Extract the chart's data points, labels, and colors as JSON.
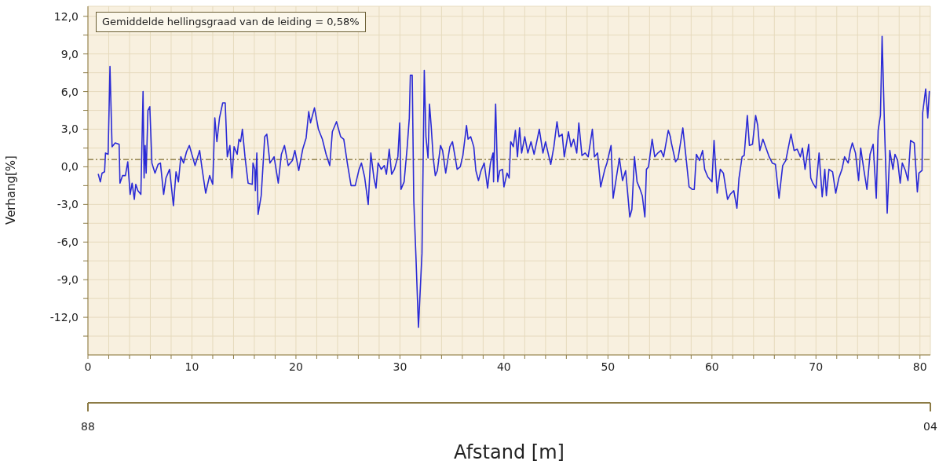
{
  "chart_data": {
    "type": "line",
    "xlabel": "Afstand [m]",
    "ylabel": "Verhang[%]",
    "annotations": [
      "Gemiddelde hellingsgraad van de leiding = 0,58%",
      "88",
      "04"
    ],
    "color": "#2a2ad6",
    "marker": "none",
    "grid": true,
    "xlim": [
      0,
      81
    ],
    "ylim": [
      -15,
      12.8
    ],
    "xticks": [
      0,
      {
        "value": 2,
        "label": null
      },
      {
        "value": 4,
        "label": null
      },
      {
        "value": 6,
        "label": null
      },
      {
        "value": 8,
        "label": null
      },
      10,
      {
        "value": 12,
        "label": null
      },
      {
        "value": 14,
        "label": null
      },
      {
        "value": 16,
        "label": null
      },
      {
        "value": 18,
        "label": null
      },
      20,
      {
        "value": 22,
        "label": null
      },
      {
        "value": 24,
        "label": null
      },
      {
        "value": 26,
        "label": null
      },
      {
        "value": 28,
        "label": null
      },
      30,
      {
        "value": 32,
        "label": null
      },
      {
        "value": 34,
        "label": null
      },
      {
        "value": 36,
        "label": null
      },
      {
        "value": 38,
        "label": null
      },
      40,
      {
        "value": 42,
        "label": null
      },
      {
        "value": 44,
        "label": null
      },
      {
        "value": 46,
        "label": null
      },
      {
        "value": 48,
        "label": null
      },
      50,
      {
        "value": 52,
        "label": null
      },
      {
        "value": 54,
        "label": null
      },
      {
        "value": 56,
        "label": null
      },
      {
        "value": 58,
        "label": null
      },
      60,
      {
        "value": 62,
        "label": null
      },
      {
        "value": 64,
        "label": null
      },
      {
        "value": 66,
        "label": null
      },
      {
        "value": 68,
        "label": null
      },
      70,
      {
        "value": 72,
        "label": null
      },
      {
        "value": 74,
        "label": null
      },
      {
        "value": 76,
        "label": null
      },
      {
        "value": 78,
        "label": null
      },
      80
    ],
    "yticks": [
      {
        "value": -13.5,
        "label": null
      },
      {
        "value": -12,
        "label": "-12,0"
      },
      {
        "value": -10.5,
        "label": null
      },
      {
        "value": -9,
        "label": "-9,0"
      },
      {
        "value": -7.5,
        "label": null
      },
      {
        "value": -6,
        "label": "-6,0"
      },
      {
        "value": -4.5,
        "label": null
      },
      {
        "value": -3,
        "label": "-3,0"
      },
      {
        "value": -1.5,
        "label": null
      },
      {
        "value": 0,
        "label": "0,0"
      },
      {
        "value": 1.5,
        "label": null
      },
      {
        "value": 3,
        "label": "3,0"
      },
      {
        "value": 4.5,
        "label": null
      },
      {
        "value": 6,
        "label": "6,0"
      },
      {
        "value": 7.5,
        "label": null
      },
      {
        "value": 9,
        "label": "9,0"
      },
      {
        "value": 10.5,
        "label": null
      },
      {
        "value": 12,
        "label": "12,0"
      }
    ],
    "ref_lines": [
      {
        "axis": "y",
        "value": 0.58,
        "color": "#7d6b2e",
        "line_style": "dashed"
      }
    ],
    "x": [
      1.0,
      1.19,
      1.36,
      1.6,
      1.69,
      1.94,
      2.12,
      2.32,
      2.62,
      3.0,
      3.08,
      3.33,
      3.6,
      3.83,
      4.06,
      4.25,
      4.46,
      4.6,
      4.8,
      5.09,
      5.3,
      5.4,
      5.5,
      5.6,
      5.77,
      5.95,
      6.15,
      6.45,
      6.75,
      6.97,
      7.28,
      7.5,
      7.85,
      8.22,
      8.47,
      8.7,
      8.93,
      9.2,
      9.48,
      9.75,
      10.06,
      10.3,
      10.74,
      10.95,
      11.32,
      11.7,
      12.0,
      12.2,
      12.4,
      12.65,
      12.96,
      13.2,
      13.4,
      13.65,
      13.84,
      14.05,
      14.35,
      14.52,
      14.68,
      14.85,
      15.1,
      15.4,
      15.8,
      15.87,
      16.04,
      16.1,
      16.24,
      16.36,
      16.66,
      17.0,
      17.2,
      17.5,
      17.9,
      18.3,
      18.6,
      18.9,
      19.26,
      19.65,
      19.9,
      20.27,
      20.65,
      20.98,
      21.23,
      21.4,
      21.78,
      22.16,
      22.54,
      22.9,
      23.25,
      23.5,
      23.9,
      24.3,
      24.6,
      24.94,
      25.3,
      25.7,
      26.07,
      26.3,
      26.6,
      26.95,
      27.2,
      27.5,
      27.7,
      27.9,
      28.2,
      28.5,
      28.7,
      28.97,
      29.2,
      29.47,
      29.8,
      29.98,
      30.1,
      30.4,
      30.7,
      30.9,
      31.0,
      31.18,
      31.33,
      31.54,
      31.78,
      32.12,
      32.34,
      32.5,
      32.7,
      32.84,
      33.0,
      33.2,
      33.4,
      33.6,
      33.9,
      34.1,
      34.4,
      34.8,
      35.05,
      35.3,
      35.5,
      35.8,
      36.05,
      36.4,
      36.55,
      36.8,
      37.1,
      37.3,
      37.55,
      37.8,
      38.1,
      38.43,
      38.7,
      38.95,
      39.0,
      39.2,
      39.4,
      39.6,
      39.86,
      40.0,
      40.3,
      40.5,
      40.65,
      40.9,
      41.1,
      41.3,
      41.5,
      41.7,
      42.0,
      42.3,
      42.6,
      42.9,
      43.2,
      43.4,
      43.75,
      44.0,
      44.3,
      44.5,
      44.8,
      45.1,
      45.3,
      45.6,
      45.8,
      46.2,
      46.45,
      46.7,
      47.0,
      47.2,
      47.5,
      47.8,
      48.1,
      48.5,
      48.7,
      49.0,
      49.3,
      49.7,
      49.9,
      50.3,
      50.5,
      50.8,
      51.1,
      51.4,
      51.7,
      52.1,
      52.3,
      52.55,
      52.8,
      53.05,
      53.3,
      53.55,
      53.7,
      53.9,
      54.25,
      54.5,
      54.8,
      55.1,
      55.35,
      55.8,
      56.0,
      56.1,
      56.5,
      56.75,
      57.2,
      57.5,
      57.8,
      58.1,
      58.3,
      58.5,
      58.8,
      59.1,
      59.3,
      59.6,
      60.0,
      60.2,
      60.5,
      60.8,
      61.1,
      61.5,
      61.75,
      62.1,
      62.4,
      62.6,
      62.9,
      63.1,
      63.4,
      63.6,
      63.9,
      64.2,
      64.4,
      64.6,
      64.9,
      65.2,
      65.5,
      65.8,
      66.1,
      66.45,
      66.8,
      67.1,
      67.6,
      67.9,
      68.2,
      68.5,
      68.7,
      68.95,
      69.3,
      69.5,
      69.7,
      70.0,
      70.3,
      70.6,
      70.85,
      71.0,
      71.25,
      71.6,
      71.9,
      72.2,
      72.5,
      72.75,
      73.1,
      73.3,
      73.5,
      73.8,
      74.1,
      74.3,
      74.6,
      74.9,
      75.2,
      75.5,
      75.8,
      75.98,
      76.2,
      76.36,
      76.6,
      76.85,
      77.1,
      77.4,
      77.6,
      77.85,
      78.1,
      78.3,
      78.6,
      78.85,
      79.1,
      79.45,
      79.75,
      79.9,
      80.2,
      80.26,
      80.55,
      80.75,
      80.9
    ],
    "values": [
      -0.6,
      -1.2,
      -0.5,
      -0.4,
      1.1,
      1.0,
      8.0,
      1.6,
      1.9,
      1.8,
      -1.3,
      -0.7,
      -0.7,
      0.4,
      -2.2,
      -1.3,
      -2.6,
      -1.4,
      -1.9,
      -2.2,
      6.0,
      -0.9,
      1.7,
      -0.5,
      4.5,
      4.8,
      0.3,
      -0.5,
      0.2,
      0.3,
      -2.2,
      -0.9,
      -0.2,
      -3.1,
      -0.4,
      -1.2,
      0.8,
      0.3,
      1.2,
      1.7,
      0.8,
      0.1,
      1.3,
      0.0,
      -2.1,
      -0.7,
      -1.4,
      3.9,
      2.0,
      3.9,
      5.1,
      5.1,
      0.8,
      1.7,
      -0.9,
      1.6,
      1.0,
      2.2,
      2.0,
      3.0,
      0.8,
      -1.3,
      -1.4,
      0.3,
      -0.2,
      -1.9,
      1.1,
      -3.8,
      -2.3,
      2.4,
      2.6,
      0.3,
      0.8,
      -1.3,
      1.0,
      1.7,
      0.1,
      0.5,
      1.3,
      -0.3,
      1.4,
      2.3,
      4.4,
      3.5,
      4.7,
      3.0,
      2.2,
      1.0,
      0.1,
      2.8,
      3.6,
      2.4,
      2.2,
      0.3,
      -1.5,
      -1.5,
      -0.2,
      0.3,
      -0.8,
      -3.0,
      1.1,
      -0.9,
      -1.7,
      0.3,
      -0.2,
      0.1,
      -0.6,
      1.4,
      -0.6,
      -0.2,
      0.8,
      3.5,
      -1.8,
      -1.2,
      1.6,
      3.9,
      7.3,
      7.3,
      -2.7,
      -7.2,
      -12.8,
      -6.9,
      7.7,
      2.4,
      0.7,
      5.0,
      3.3,
      0.7,
      -0.7,
      -0.3,
      1.7,
      1.3,
      -0.5,
      1.6,
      2.0,
      0.8,
      -0.2,
      0.0,
      0.9,
      3.3,
      2.2,
      2.4,
      1.6,
      -0.3,
      -1.1,
      -0.3,
      0.3,
      -1.7,
      0.3,
      1.1,
      -1.2,
      5.0,
      -1.2,
      -0.3,
      -0.2,
      -1.6,
      -0.5,
      -0.9,
      2.0,
      1.6,
      2.9,
      0.8,
      3.1,
      1.1,
      2.4,
      1.1,
      2.0,
      1.0,
      2.2,
      3.0,
      1.1,
      2.0,
      0.9,
      0.2,
      1.6,
      3.6,
      2.4,
      2.6,
      0.8,
      2.8,
      1.6,
      2.2,
      1.1,
      3.5,
      0.9,
      1.1,
      0.8,
      3.0,
      0.8,
      1.1,
      -1.6,
      -0.2,
      0.3,
      1.7,
      -2.5,
      -0.9,
      0.7,
      -1.1,
      -0.3,
      -4.0,
      -3.4,
      0.8,
      -1.2,
      -1.7,
      -2.3,
      -4.0,
      -0.2,
      0.0,
      2.2,
      0.8,
      1.1,
      1.3,
      0.8,
      2.9,
      2.4,
      1.9,
      0.4,
      0.7,
      3.1,
      0.8,
      -1.6,
      -1.8,
      -1.8,
      1.0,
      0.5,
      1.3,
      -0.2,
      -0.8,
      -1.2,
      2.1,
      -2.1,
      -0.2,
      -0.5,
      -2.6,
      -2.2,
      -1.9,
      -3.3,
      -0.9,
      0.8,
      0.9,
      4.1,
      1.7,
      1.8,
      4.1,
      3.3,
      1.3,
      2.2,
      1.5,
      0.8,
      0.3,
      0.2,
      -2.5,
      0.1,
      0.5,
      2.6,
      1.3,
      1.4,
      0.8,
      1.5,
      -0.2,
      1.8,
      -0.9,
      -1.3,
      -1.7,
      1.1,
      -2.4,
      -0.2,
      -2.3,
      -0.2,
      -0.4,
      -2.1,
      -0.9,
      -0.2,
      0.8,
      0.3,
      1.3,
      1.9,
      1.1,
      -1.1,
      1.5,
      -0.2,
      -1.8,
      1.0,
      1.8,
      -2.5,
      2.9,
      4.1,
      10.4,
      2.9,
      -3.7,
      1.3,
      -0.2,
      1.0,
      0.5,
      -1.3,
      0.3,
      -0.3,
      -1.1,
      2.1,
      1.9,
      -2.0,
      -0.5,
      -0.3,
      4.3,
      6.2,
      3.9,
      6.0
    ]
  }
}
